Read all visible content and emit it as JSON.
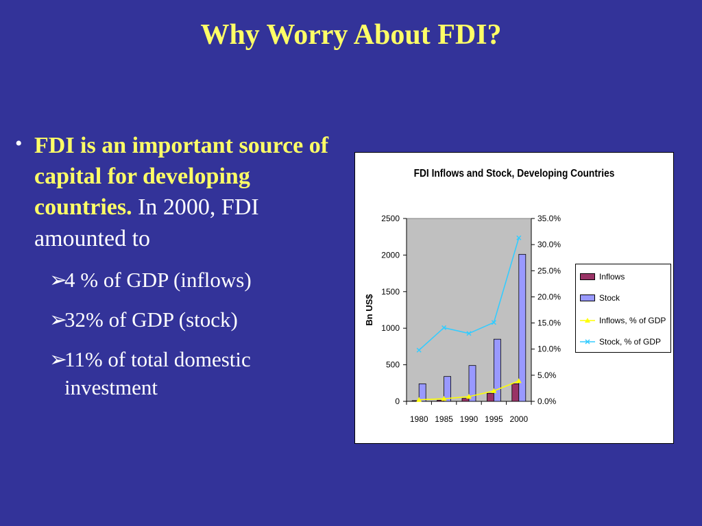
{
  "slide": {
    "title": "Why Worry About FDI?",
    "bullet": {
      "strong": "FDI is an important source of capital for developing countries.",
      "normal": " In 2000, FDI amounted to"
    },
    "sub_items": [
      {
        "text": "4 % of  GDP (inflows)"
      },
      {
        "text": "32% of GDP (stock)"
      },
      {
        "text": "11% of total domestic",
        "continuation": "investment"
      }
    ]
  },
  "colors": {
    "background": "#333399",
    "title": "#ffff66",
    "inflows": "#993366",
    "stock": "#9999ff",
    "inflows_pct": "#ffff00",
    "stock_pct": "#33ccff",
    "plot_area": "#c0c0c0"
  },
  "chart_data": {
    "type": "bar",
    "title": "FDI Inflows and Stock, Developing Countries",
    "categories": [
      "1980",
      "1985",
      "1990",
      "1995",
      "2000"
    ],
    "ylabel": "Bn US$",
    "ylim": [
      0,
      2500
    ],
    "y_ticks": [
      "0",
      "500",
      "1000",
      "1500",
      "2000",
      "2500"
    ],
    "y2lim": [
      0,
      35
    ],
    "y2_ticks": [
      "0.0%",
      "5.0%",
      "10.0%",
      "15.0%",
      "20.0%",
      "25.0%",
      "30.0%",
      "35.0%"
    ],
    "series": [
      {
        "name": "Inflows",
        "type": "bar",
        "axis": "left",
        "values": [
          10,
          15,
          40,
          110,
          240
        ]
      },
      {
        "name": "Stock",
        "type": "bar",
        "axis": "left",
        "values": [
          240,
          340,
          490,
          850,
          2010
        ]
      },
      {
        "name": "Inflows, % of GDP",
        "type": "line",
        "axis": "right",
        "values": [
          0.3,
          0.5,
          0.9,
          2.0,
          3.9
        ]
      },
      {
        "name": "Stock, % of GDP",
        "type": "line",
        "axis": "right",
        "values": [
          9.8,
          14.1,
          13.0,
          15.1,
          31.3
        ]
      }
    ],
    "grid": false,
    "legend_position": "right"
  }
}
